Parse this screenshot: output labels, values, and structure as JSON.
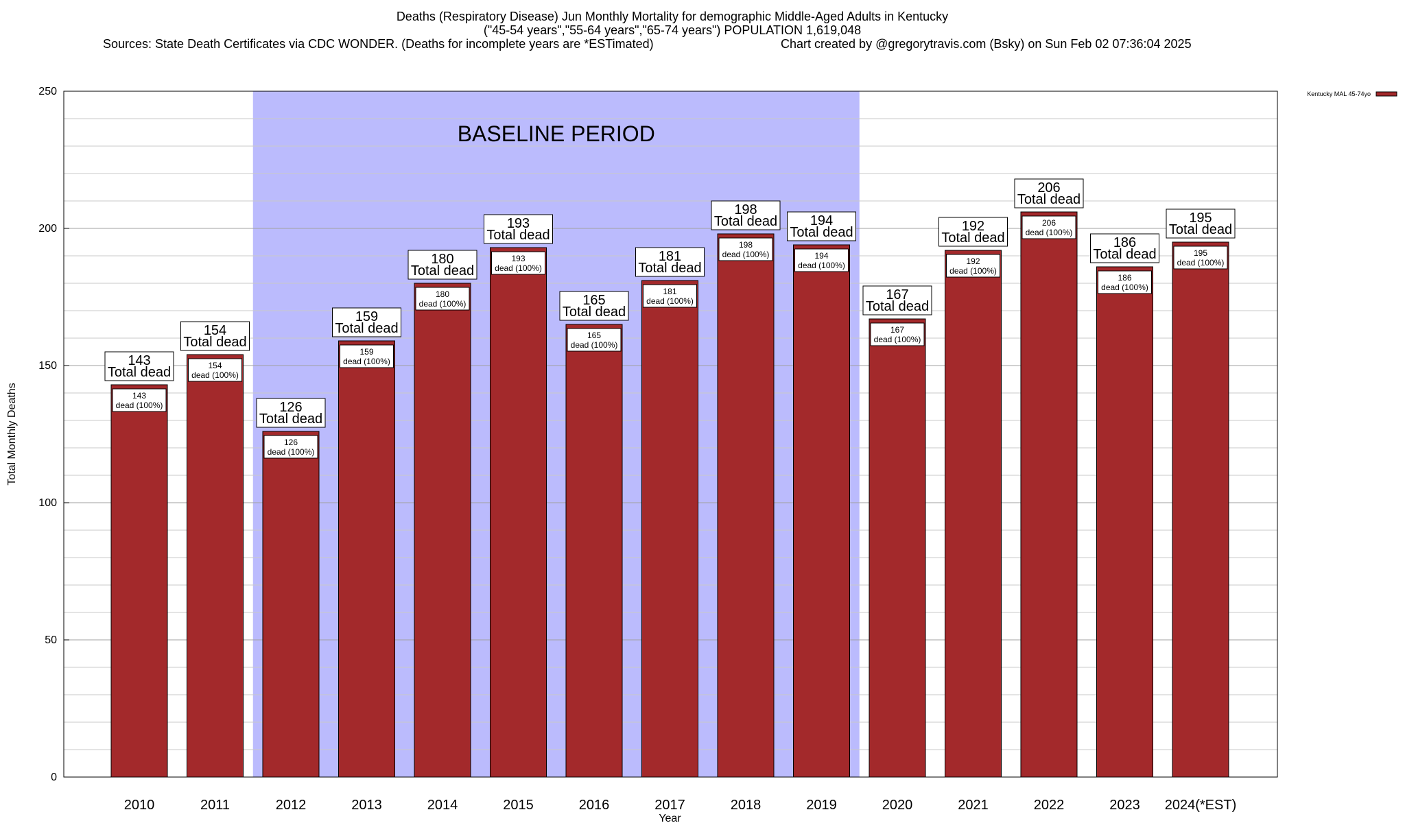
{
  "header": {
    "title": "Deaths (Respiratory Disease) Jun Monthly Mortality for demographic Middle-Aged Adults in Kentucky",
    "subtitle": "(\"45-54 years\",\"55-64 years\",\"65-74 years\") POPULATION 1,619,048",
    "sources": "Sources: State Death Certificates via CDC WONDER. (Deaths for incomplete years are *ESTimated)",
    "credit": "Chart created by @gregorytravis.com (Bsky) on Sun Feb 02 07:36:04 2025"
  },
  "chart_data": {
    "type": "bar",
    "xlabel": "Year",
    "ylabel": "Total Monthly Deaths",
    "ylim": [
      0,
      250
    ],
    "yticks": [
      0,
      50,
      100,
      150,
      200,
      250
    ],
    "grid": true,
    "legend_position": "top-right",
    "categories": [
      "2010",
      "2011",
      "2012",
      "2013",
      "2014",
      "2015",
      "2016",
      "2017",
      "2018",
      "2019",
      "2020",
      "2021",
      "2022",
      "2023",
      "2024(*EST)"
    ],
    "series": [
      {
        "name": "Kentucky MAL 45-74yo",
        "color": "#a3292b",
        "values": [
          143,
          154,
          126,
          159,
          180,
          193,
          165,
          181,
          198,
          194,
          167,
          192,
          206,
          186,
          195
        ]
      }
    ],
    "label_top_text": "Total dead",
    "label_inner_text": "dead (100%)",
    "baseline_region": {
      "label": "BASELINE PERIOD",
      "from": "2012",
      "to": "2019",
      "color": "#bbbbfd"
    }
  }
}
